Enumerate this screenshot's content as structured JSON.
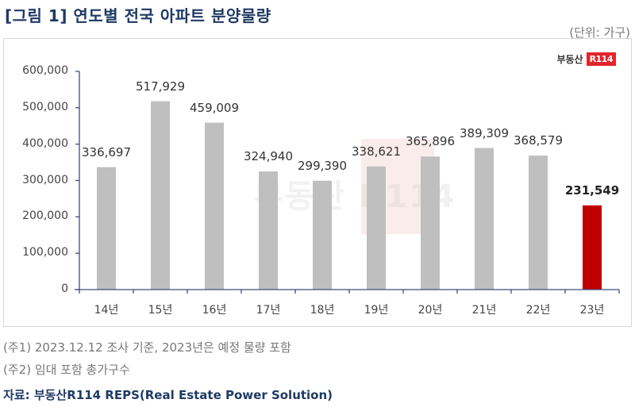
{
  "header": {
    "title": "[그림 1] 연도별 전국 아파트 분양물량",
    "unit": "(단위: 가구)"
  },
  "logo": {
    "text": "부동산",
    "badge": "R114"
  },
  "notes": [
    "(주1) 2023.12.12 조사 기준, 2023년은 예정 물량 포함",
    "(주2) 임대 포함 총가구수"
  ],
  "source": "자료: 부동산R114 REPS(Real Estate Power Solution)",
  "colors": {
    "bar": "#bfbfbf",
    "highlight": "#c00000",
    "axis": "#3b4f7a",
    "title": "#1f3a64"
  },
  "chart_data": {
    "type": "bar",
    "title": "연도별 전국 아파트 분양물량",
    "xlabel": "",
    "ylabel": "",
    "unit": "가구",
    "categories": [
      "14년",
      "15년",
      "16년",
      "17년",
      "18년",
      "19년",
      "20년",
      "21년",
      "22년",
      "23년"
    ],
    "values": [
      336697,
      517929,
      459009,
      324940,
      299390,
      338621,
      365896,
      389309,
      368579,
      231549
    ],
    "value_labels": [
      "336,697",
      "517,929",
      "459,009",
      "324,940",
      "299,390",
      "338,621",
      "365,896",
      "389,309",
      "368,579",
      "231,549"
    ],
    "highlight_index": 9,
    "ylim": [
      0,
      600000
    ],
    "yticks": [
      0,
      100000,
      200000,
      300000,
      400000,
      500000,
      600000
    ],
    "ytick_labels": [
      "0",
      "100,000",
      "200,000",
      "300,000",
      "400,000",
      "500,000",
      "600,000"
    ],
    "grid": false,
    "legend": "none"
  }
}
